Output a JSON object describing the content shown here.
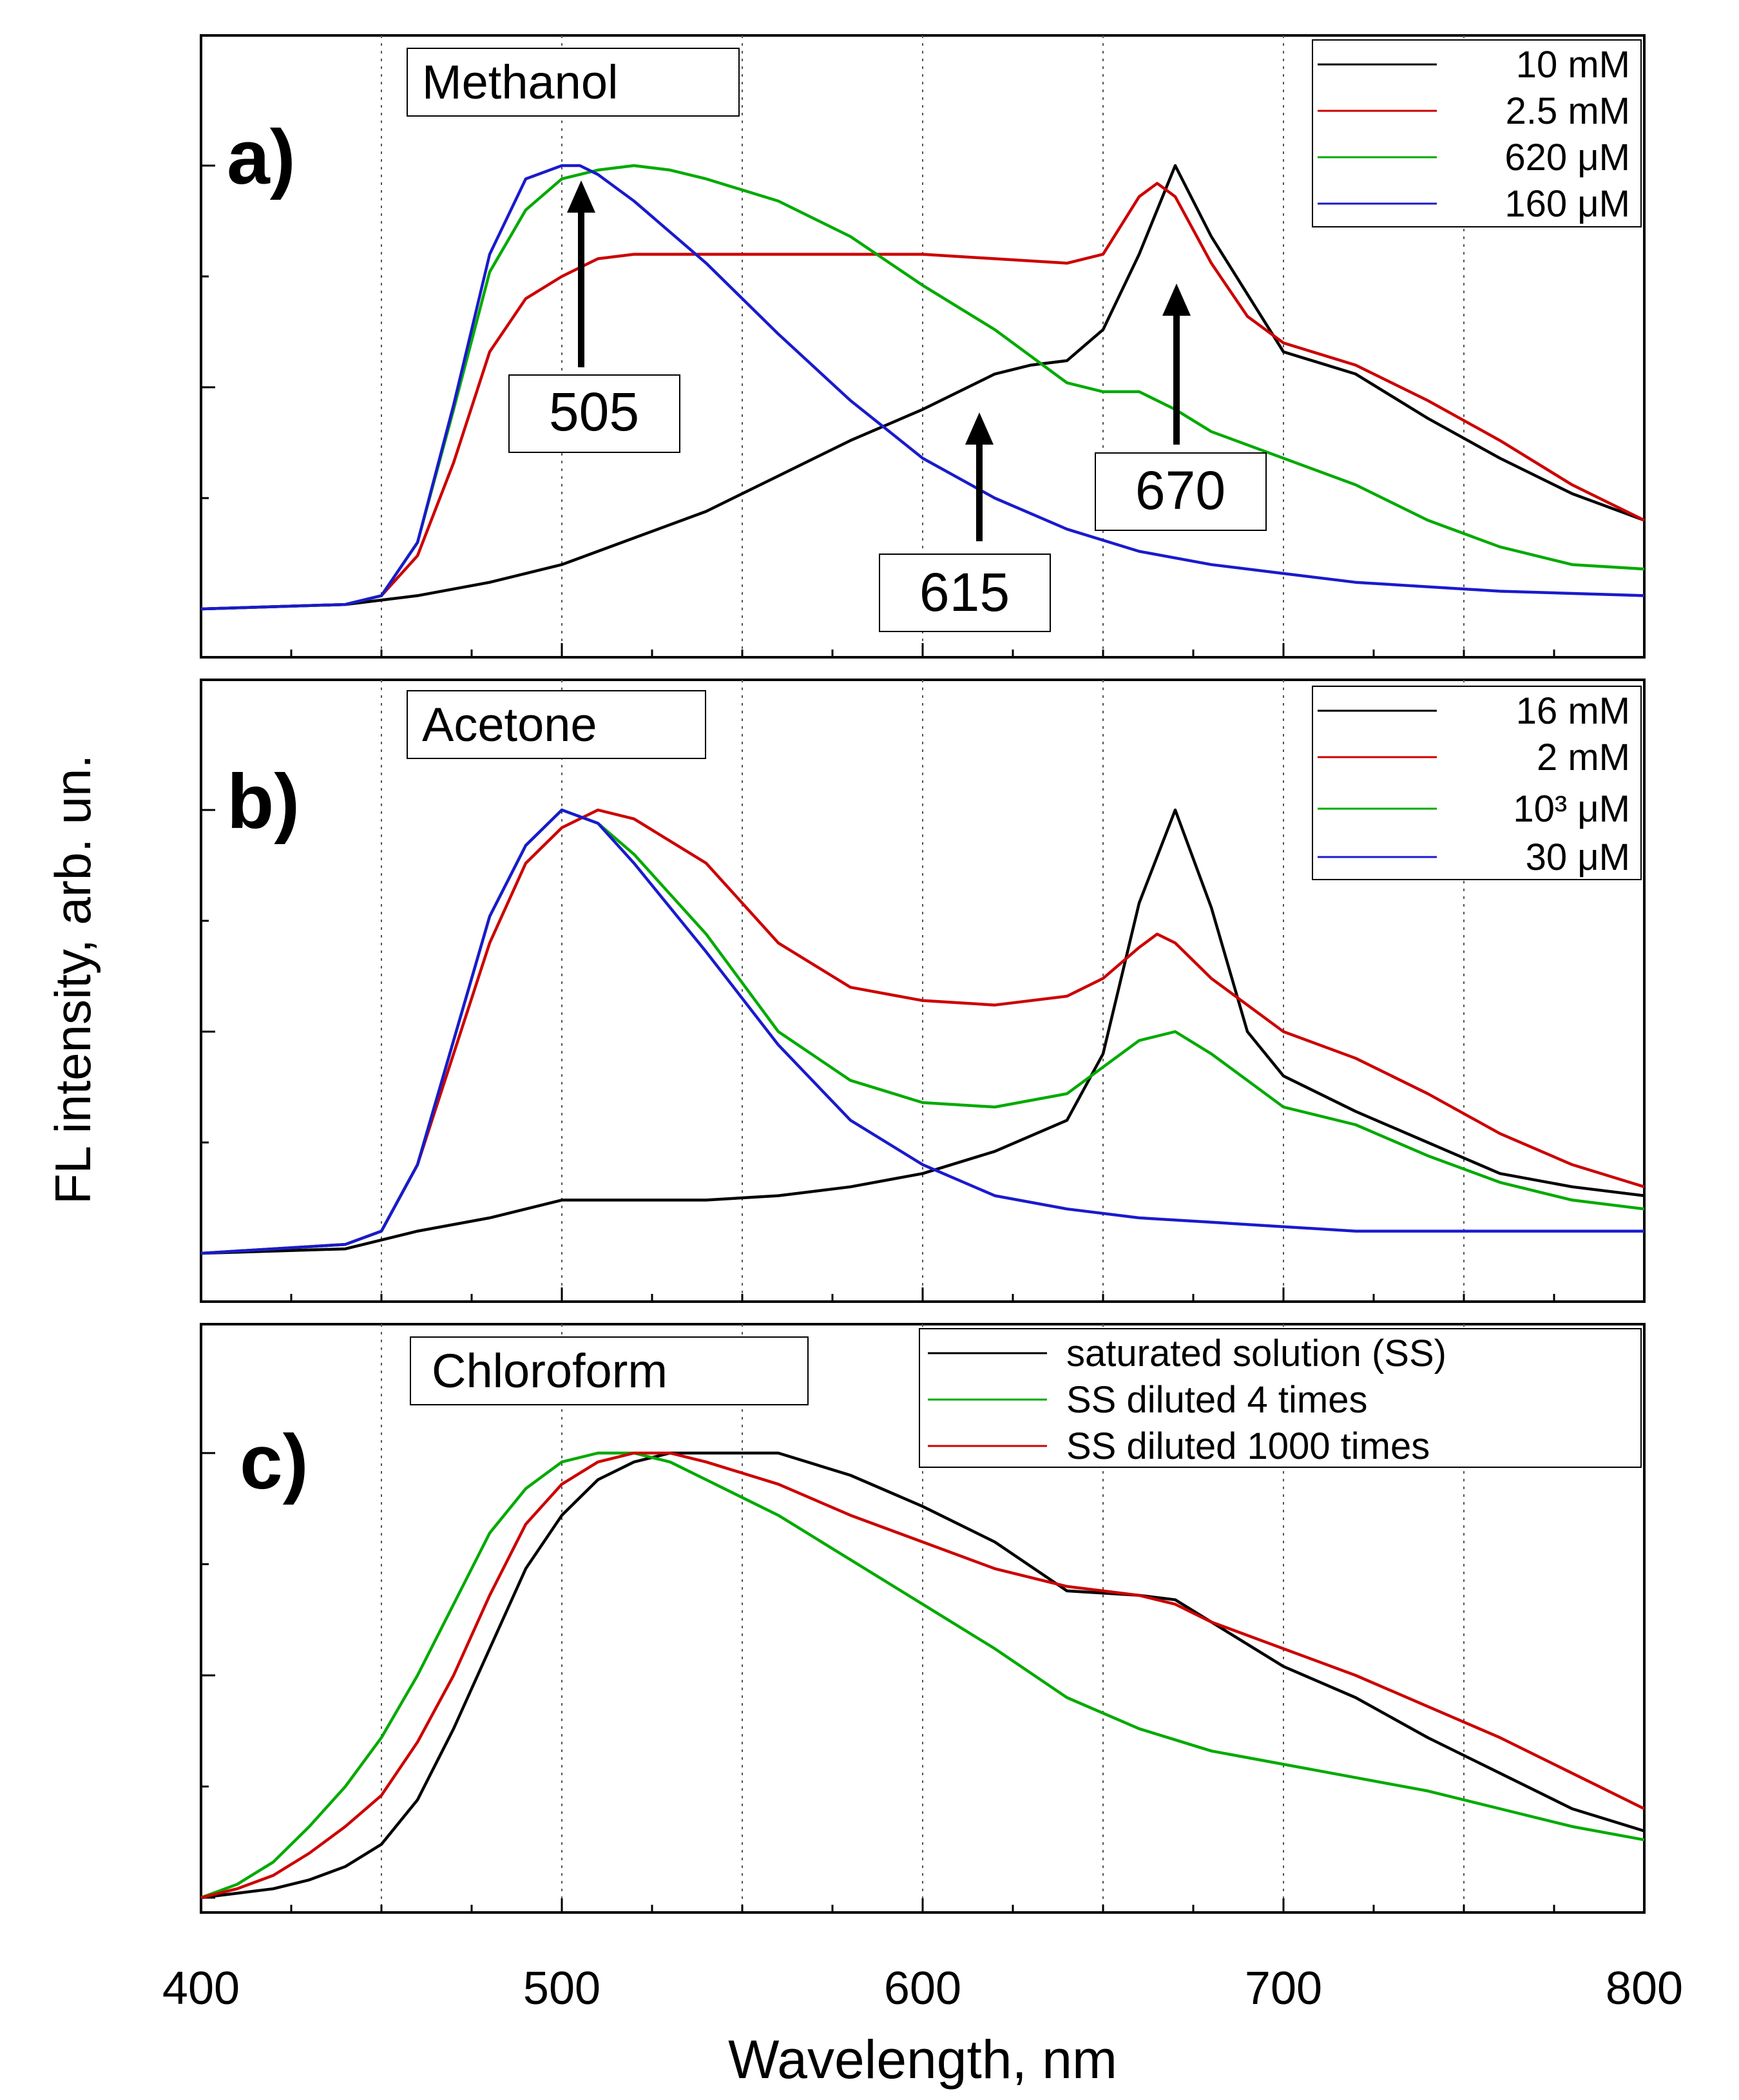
{
  "chart_data": [
    {
      "type": "line",
      "panel_label": "a)",
      "solvent": "Methanol",
      "xlim": [
        400,
        800
      ],
      "ylim": [
        0,
        1.1
      ],
      "legend_position": "top-right",
      "series": [
        {
          "name": "10 mM",
          "color": "#000000",
          "x": [
            400,
            440,
            460,
            480,
            500,
            520,
            540,
            560,
            580,
            600,
            620,
            630,
            640,
            650,
            660,
            670,
            680,
            700,
            720,
            740,
            760,
            780,
            800
          ],
          "y": [
            0.0,
            0.01,
            0.03,
            0.06,
            0.1,
            0.16,
            0.22,
            0.3,
            0.38,
            0.45,
            0.53,
            0.55,
            0.56,
            0.63,
            0.8,
            1.0,
            0.84,
            0.58,
            0.53,
            0.43,
            0.34,
            0.26,
            0.2
          ]
        },
        {
          "name": "2.5 mM",
          "color": "#cc0000",
          "x": [
            400,
            440,
            450,
            460,
            470,
            480,
            490,
            500,
            510,
            520,
            540,
            560,
            600,
            620,
            640,
            650,
            660,
            665,
            670,
            680,
            690,
            700,
            720,
            740,
            760,
            780,
            800
          ],
          "y": [
            0.0,
            0.01,
            0.03,
            0.12,
            0.33,
            0.58,
            0.7,
            0.75,
            0.79,
            0.8,
            0.8,
            0.8,
            0.8,
            0.79,
            0.78,
            0.8,
            0.93,
            0.96,
            0.93,
            0.78,
            0.66,
            0.6,
            0.55,
            0.47,
            0.38,
            0.28,
            0.2
          ]
        },
        {
          "name": "620 μM",
          "color": "#00aa00",
          "x": [
            400,
            440,
            450,
            460,
            470,
            480,
            490,
            500,
            510,
            520,
            530,
            540,
            560,
            580,
            600,
            620,
            640,
            650,
            660,
            670,
            680,
            700,
            720,
            740,
            760,
            780,
            800
          ],
          "y": [
            0.0,
            0.01,
            0.03,
            0.15,
            0.45,
            0.76,
            0.9,
            0.97,
            0.99,
            1.0,
            0.99,
            0.97,
            0.92,
            0.84,
            0.73,
            0.63,
            0.51,
            0.49,
            0.49,
            0.45,
            0.4,
            0.34,
            0.28,
            0.2,
            0.14,
            0.1,
            0.09
          ]
        },
        {
          "name": "160 μM",
          "color": "#1a1acc",
          "x": [
            400,
            440,
            450,
            460,
            470,
            480,
            490,
            500,
            505,
            510,
            520,
            540,
            560,
            580,
            600,
            620,
            640,
            660,
            680,
            700,
            720,
            760,
            800
          ],
          "y": [
            0.0,
            0.01,
            0.03,
            0.15,
            0.46,
            0.8,
            0.97,
            1.0,
            1.0,
            0.98,
            0.92,
            0.78,
            0.62,
            0.47,
            0.34,
            0.25,
            0.18,
            0.13,
            0.1,
            0.08,
            0.06,
            0.04,
            0.03
          ]
        }
      ],
      "annotations": [
        {
          "text": "505",
          "x": 505
        },
        {
          "text": "615",
          "x": 615
        },
        {
          "text": "670",
          "x": 670
        }
      ]
    },
    {
      "type": "line",
      "panel_label": "b)",
      "solvent": "Acetone",
      "xlim": [
        400,
        800
      ],
      "ylim": [
        0,
        1.1
      ],
      "legend_position": "top-right",
      "series": [
        {
          "name": "16 mM",
          "color": "#000000",
          "x": [
            400,
            440,
            460,
            480,
            500,
            520,
            540,
            560,
            580,
            600,
            620,
            640,
            650,
            660,
            670,
            680,
            690,
            700,
            720,
            740,
            760,
            780,
            800
          ],
          "y": [
            0.0,
            0.01,
            0.05,
            0.08,
            0.12,
            0.12,
            0.12,
            0.13,
            0.15,
            0.18,
            0.23,
            0.3,
            0.45,
            0.79,
            1.0,
            0.78,
            0.5,
            0.4,
            0.32,
            0.25,
            0.18,
            0.15,
            0.13
          ]
        },
        {
          "name": "2 mM",
          "color": "#cc0000",
          "x": [
            400,
            440,
            450,
            460,
            470,
            480,
            490,
            500,
            510,
            520,
            540,
            560,
            580,
            600,
            620,
            640,
            650,
            660,
            665,
            670,
            680,
            690,
            700,
            720,
            740,
            760,
            780,
            800
          ],
          "y": [
            0.0,
            0.02,
            0.05,
            0.2,
            0.45,
            0.7,
            0.88,
            0.96,
            1.0,
            0.98,
            0.88,
            0.7,
            0.6,
            0.57,
            0.56,
            0.58,
            0.62,
            0.69,
            0.72,
            0.7,
            0.62,
            0.56,
            0.5,
            0.44,
            0.36,
            0.27,
            0.2,
            0.15
          ]
        },
        {
          "name": "10³ μM",
          "color": "#00aa00",
          "x": [
            400,
            440,
            450,
            460,
            470,
            480,
            490,
            500,
            510,
            520,
            540,
            560,
            580,
            600,
            620,
            640,
            650,
            660,
            670,
            680,
            700,
            720,
            740,
            760,
            780,
            800
          ],
          "y": [
            0.0,
            0.02,
            0.05,
            0.2,
            0.48,
            0.76,
            0.92,
            1.0,
            0.97,
            0.9,
            0.72,
            0.5,
            0.39,
            0.34,
            0.33,
            0.36,
            0.42,
            0.48,
            0.5,
            0.45,
            0.33,
            0.29,
            0.22,
            0.16,
            0.12,
            0.1
          ]
        },
        {
          "name": "30 μM",
          "color": "#1a1acc",
          "x": [
            400,
            440,
            450,
            460,
            470,
            480,
            490,
            500,
            510,
            520,
            540,
            560,
            580,
            600,
            620,
            640,
            660,
            680,
            700,
            720,
            760,
            800
          ],
          "y": [
            0.0,
            0.02,
            0.05,
            0.2,
            0.48,
            0.76,
            0.92,
            1.0,
            0.97,
            0.88,
            0.68,
            0.47,
            0.3,
            0.2,
            0.13,
            0.1,
            0.08,
            0.07,
            0.06,
            0.05,
            0.05,
            0.05
          ]
        }
      ]
    },
    {
      "type": "line",
      "panel_label": "c)",
      "solvent": "Chloroform",
      "xlim": [
        400,
        800
      ],
      "xlabel": "Wavelength, nm",
      "ylim": [
        0,
        1.1
      ],
      "legend_position": "top-right",
      "series": [
        {
          "name": "saturated solution (SS)",
          "color": "#000000",
          "x": [
            400,
            410,
            420,
            430,
            440,
            450,
            460,
            470,
            480,
            490,
            500,
            510,
            520,
            530,
            540,
            550,
            560,
            580,
            600,
            620,
            640,
            660,
            670,
            680,
            700,
            720,
            740,
            760,
            780,
            800
          ],
          "y": [
            0.0,
            0.01,
            0.02,
            0.04,
            0.07,
            0.12,
            0.22,
            0.38,
            0.56,
            0.74,
            0.86,
            0.94,
            0.98,
            1.0,
            1.0,
            1.0,
            1.0,
            0.95,
            0.88,
            0.8,
            0.69,
            0.68,
            0.67,
            0.62,
            0.52,
            0.45,
            0.36,
            0.28,
            0.2,
            0.15
          ]
        },
        {
          "name": "SS diluted 4 times",
          "color": "#00aa00",
          "x": [
            400,
            410,
            420,
            430,
            440,
            450,
            460,
            470,
            480,
            490,
            500,
            510,
            520,
            530,
            540,
            560,
            580,
            600,
            620,
            640,
            660,
            680,
            700,
            720,
            740,
            760,
            780,
            800
          ],
          "y": [
            0.0,
            0.03,
            0.08,
            0.16,
            0.25,
            0.36,
            0.5,
            0.66,
            0.82,
            0.92,
            0.98,
            1.0,
            1.0,
            0.98,
            0.94,
            0.86,
            0.76,
            0.66,
            0.56,
            0.45,
            0.38,
            0.33,
            0.3,
            0.27,
            0.24,
            0.2,
            0.16,
            0.13
          ]
        },
        {
          "name": "SS diluted 1000 times",
          "color": "#cc0000",
          "x": [
            400,
            410,
            420,
            430,
            440,
            450,
            460,
            470,
            480,
            490,
            500,
            510,
            520,
            530,
            540,
            560,
            580,
            600,
            620,
            640,
            660,
            670,
            680,
            700,
            720,
            740,
            760,
            780,
            800
          ],
          "y": [
            0.0,
            0.02,
            0.05,
            0.1,
            0.16,
            0.23,
            0.35,
            0.5,
            0.68,
            0.84,
            0.93,
            0.98,
            1.0,
            1.0,
            0.98,
            0.93,
            0.86,
            0.8,
            0.74,
            0.7,
            0.68,
            0.66,
            0.62,
            0.56,
            0.5,
            0.43,
            0.36,
            0.28,
            0.2
          ]
        }
      ]
    }
  ],
  "axes": {
    "xlabel": "Wavelength, nm",
    "ylabel": "FL intensity, arb. un.",
    "xticks": [
      "400",
      "500",
      "600",
      "700",
      "800"
    ]
  }
}
